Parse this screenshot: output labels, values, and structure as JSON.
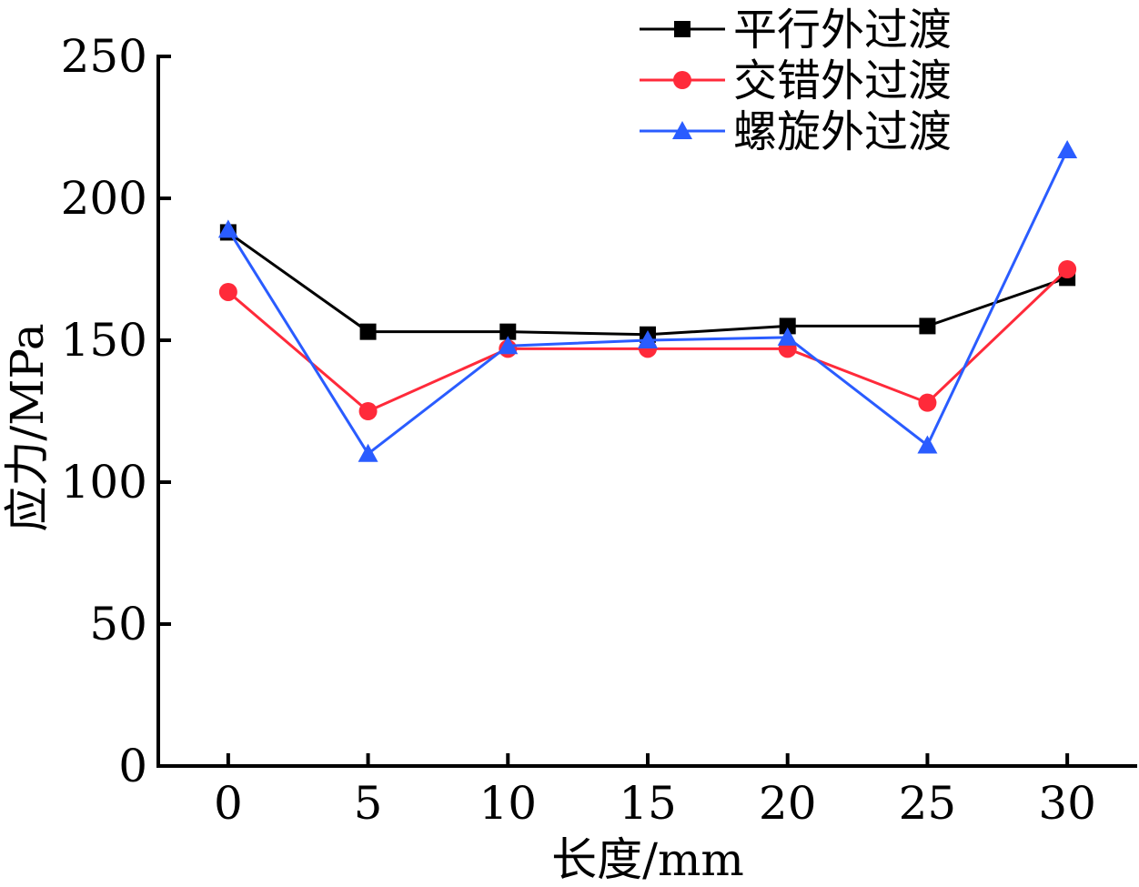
{
  "chart_data": {
    "type": "line",
    "xlabel": "长度/mm",
    "ylabel": "应力/MPa",
    "x": [
      0,
      5,
      10,
      15,
      20,
      25,
      30
    ],
    "xlim": [
      -2.5,
      32.5
    ],
    "ylim": [
      0,
      250
    ],
    "xticks": [
      0,
      5,
      10,
      15,
      20,
      25,
      30
    ],
    "yticks": [
      0,
      50,
      100,
      150,
      200,
      250
    ],
    "grid": false,
    "legend_position": "top-right",
    "series": [
      {
        "name": "平行外过渡",
        "color": "#000000",
        "marker": "square",
        "values": [
          188,
          153,
          153,
          152,
          155,
          155,
          172
        ]
      },
      {
        "name": "交错外过渡",
        "color": "#ff2a3a",
        "marker": "circle",
        "values": [
          167,
          125,
          147,
          147,
          147,
          128,
          175
        ]
      },
      {
        "name": "螺旋外过渡",
        "color": "#2a5cff",
        "marker": "triangle",
        "values": [
          189,
          110,
          148,
          150,
          151,
          113,
          217
        ]
      }
    ]
  }
}
